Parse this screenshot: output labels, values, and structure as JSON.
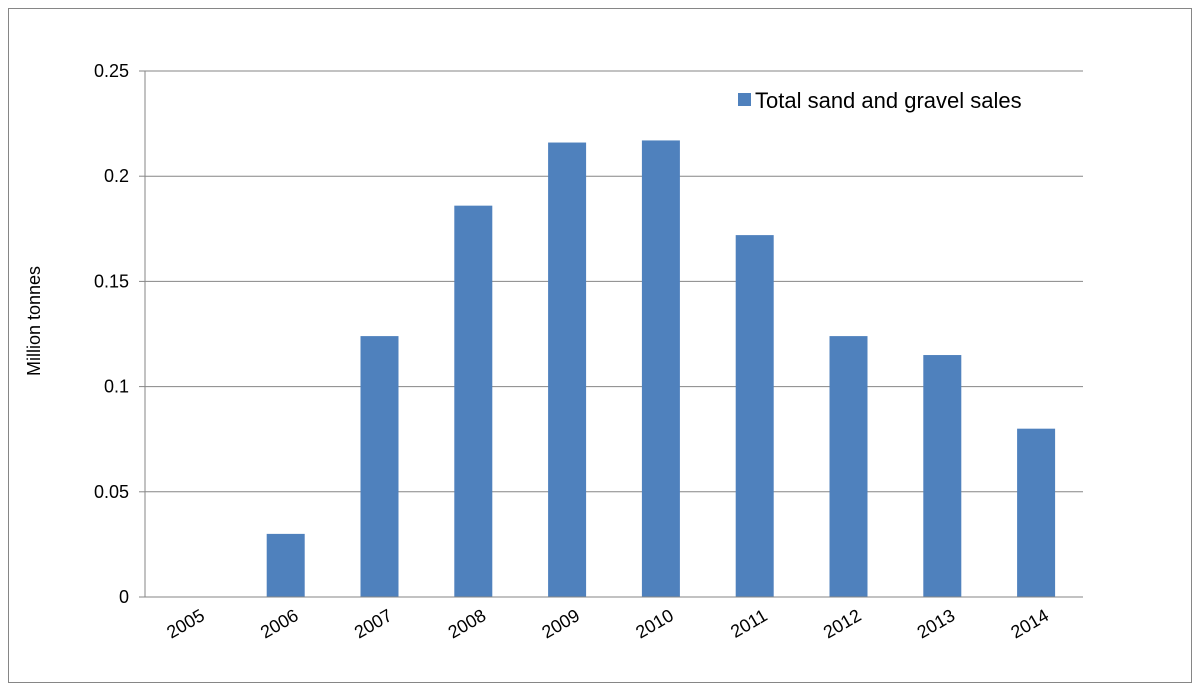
{
  "chart_data": {
    "type": "bar",
    "categories": [
      "2005",
      "2006",
      "2007",
      "2008",
      "2009",
      "2010",
      "2011",
      "2012",
      "2013",
      "2014"
    ],
    "series": [
      {
        "name": "Total sand and gravel sales",
        "values": [
          0,
          0.03,
          0.124,
          0.186,
          0.216,
          0.217,
          0.172,
          0.124,
          0.115,
          0.08
        ]
      }
    ],
    "ylabel": "Million tonnes",
    "xlabel": "",
    "ylim": [
      0,
      0.25
    ],
    "yticks": [
      "0",
      "0.05",
      "0.1",
      "0.15",
      "0.2",
      "0.25"
    ],
    "grid": true,
    "legend_position": "top-right",
    "colors": {
      "bar": "#4F81BD",
      "grid": "#868686",
      "axis": "#868686"
    }
  }
}
